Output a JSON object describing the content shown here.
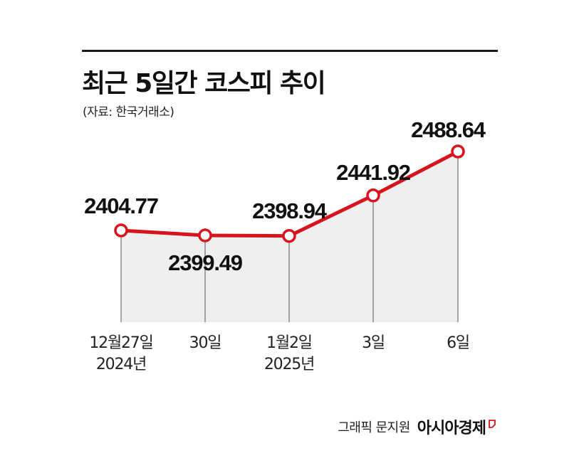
{
  "header": {
    "title": "최근 5일간 코스피 추이",
    "source": "(자료: 한국거래소)"
  },
  "footer": {
    "credit": "그래픽 문지원",
    "brand": "아시아경제"
  },
  "colors": {
    "line": "#d7141e",
    "area": "#efefef",
    "drop_line": "#555555",
    "text": "#111111"
  },
  "chart_data": {
    "type": "line",
    "title": "최근 5일간 코스피 추이",
    "categories": [
      [
        "12월27일",
        "2024년"
      ],
      [
        "30일"
      ],
      [
        "1월2일",
        "2025년"
      ],
      [
        "3일"
      ],
      [
        "6일"
      ]
    ],
    "series": [
      {
        "values": [
          2404.77,
          2399.49,
          2398.94,
          2441.92,
          2488.64
        ]
      }
    ],
    "data_labels": [
      "2404.77",
      "2399.49",
      "2398.94",
      "2441.92",
      "2488.64"
    ],
    "grid": false,
    "legend": "none",
    "area_fill": true
  }
}
